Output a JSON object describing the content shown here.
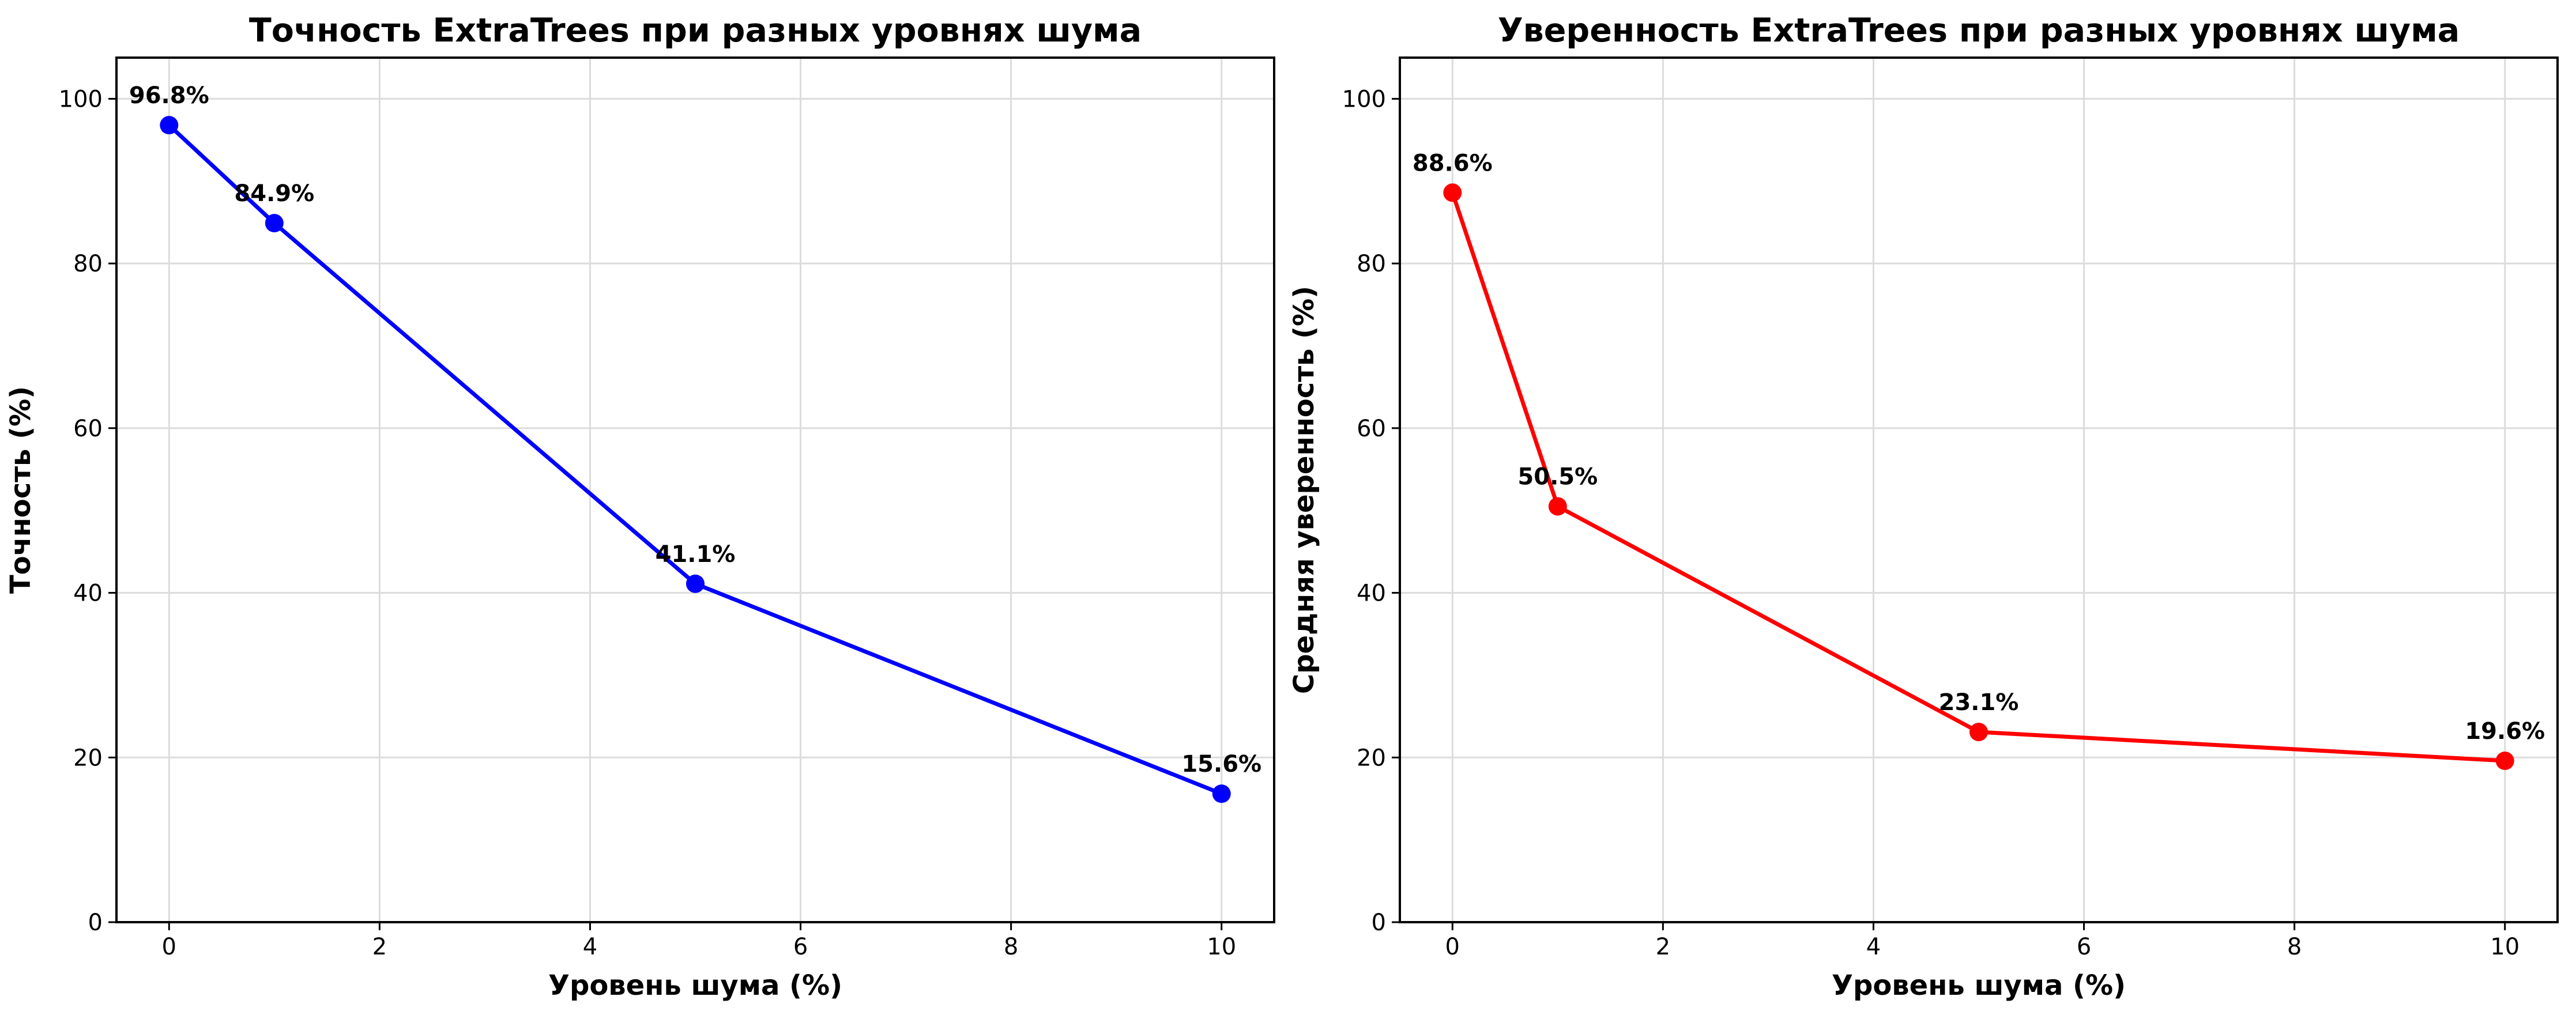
{
  "chart_data": [
    {
      "type": "line",
      "title": "Точность ExtraTrees при разных уровнях шума",
      "xlabel": "Уровень шума (%)",
      "ylabel": "Точность (%)",
      "xlim": [
        -0.5,
        10.5
      ],
      "ylim": [
        0,
        105
      ],
      "xticks": [
        0,
        2,
        4,
        6,
        8,
        10
      ],
      "yticks": [
        0,
        20,
        40,
        60,
        80,
        100
      ],
      "x_tick_labels": [
        "0",
        "2",
        "4",
        "6",
        "8",
        "10"
      ],
      "y_tick_labels": [
        "0",
        "20",
        "40",
        "60",
        "80",
        "100"
      ],
      "grid": true,
      "color": "#0000ff",
      "x": [
        0,
        1,
        5,
        10
      ],
      "y": [
        96.8,
        84.9,
        41.1,
        15.6
      ],
      "data_labels": [
        "96.8%",
        "84.9%",
        "41.1%",
        "15.6%"
      ]
    },
    {
      "type": "line",
      "title": "Уверенность ExtraTrees при разных уровнях шума",
      "xlabel": "Уровень шума (%)",
      "ylabel": "Средняя уверенность (%)",
      "xlim": [
        -0.5,
        10.5
      ],
      "ylim": [
        0,
        105
      ],
      "xticks": [
        0,
        2,
        4,
        6,
        8,
        10
      ],
      "yticks": [
        0,
        20,
        40,
        60,
        80,
        100
      ],
      "x_tick_labels": [
        "0",
        "2",
        "4",
        "6",
        "8",
        "10"
      ],
      "y_tick_labels": [
        "0",
        "20",
        "40",
        "60",
        "80",
        "100"
      ],
      "grid": true,
      "color": "#ff0000",
      "x": [
        0,
        1,
        5,
        10
      ],
      "y": [
        88.6,
        50.5,
        23.1,
        19.6
      ],
      "data_labels": [
        "88.6%",
        "50.5%",
        "23.1%",
        "19.6%"
      ]
    }
  ]
}
